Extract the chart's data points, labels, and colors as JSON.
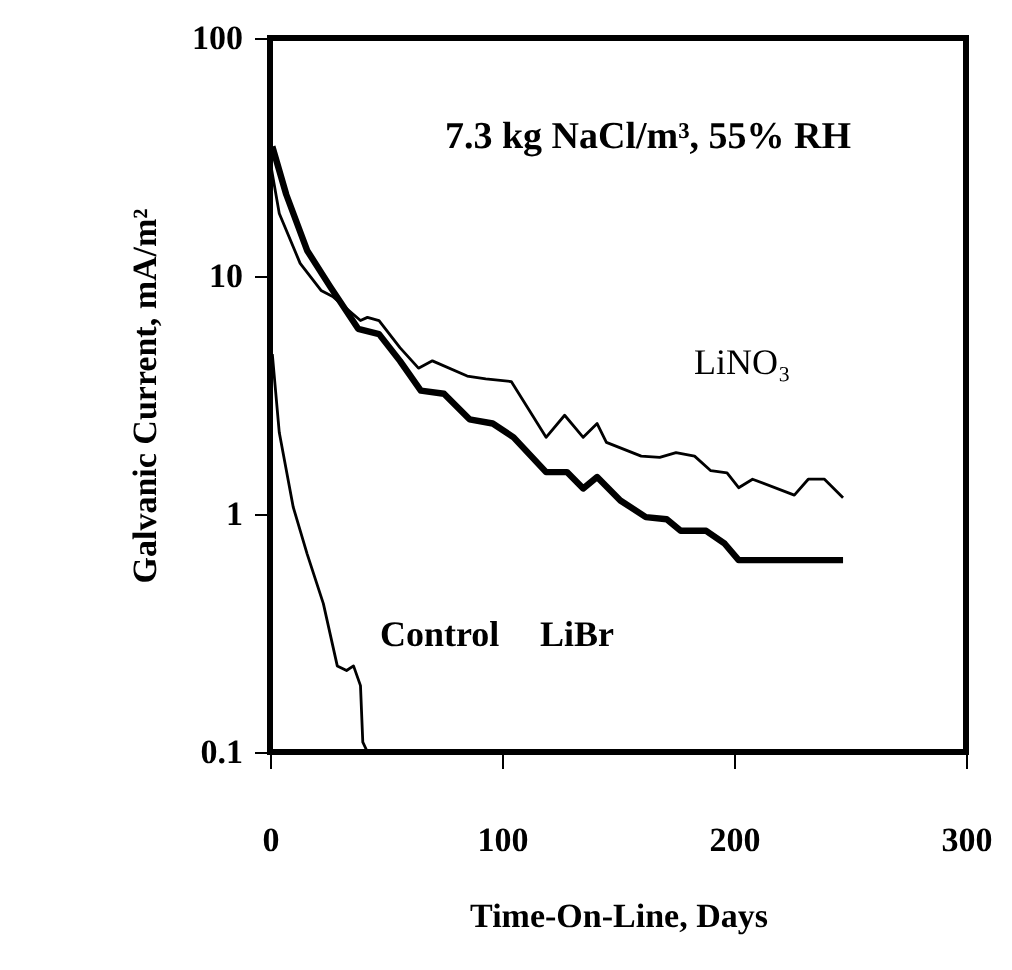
{
  "chart_data": {
    "type": "line",
    "xlabel": "Time-On-Line, Days",
    "ylabel": "Galvanic Current, mA/m²",
    "annotations": [
      "7.3 kg NaCl/m³, 55% RH"
    ],
    "xlim": [
      0,
      300
    ],
    "xticks": [
      0,
      100,
      200,
      300
    ],
    "ylim": [
      0.1,
      100
    ],
    "yticks": [
      0.1,
      1,
      10,
      100
    ],
    "log": true,
    "grid": false,
    "marker": "none",
    "line_style": "solid",
    "series": [
      {
        "name": "LiNO₃",
        "color": "#000000",
        "x": [
          0,
          4,
          13,
          22,
          27,
          39,
          42,
          47,
          56,
          64,
          70,
          85,
          93,
          104,
          111,
          119,
          127,
          135,
          141,
          145,
          160,
          168,
          175,
          183,
          190,
          197,
          202,
          208,
          226,
          232,
          239,
          247
        ],
        "values": [
          30.6,
          18.3,
          11.3,
          8.7,
          8.2,
          6.5,
          6.7,
          6.5,
          5.0,
          4.1,
          4.4,
          3.8,
          3.7,
          3.6,
          2.8,
          2.1,
          2.6,
          2.1,
          2.4,
          2.0,
          1.75,
          1.73,
          1.81,
          1.75,
          1.52,
          1.49,
          1.29,
          1.4,
          1.2,
          1.4,
          1.4,
          1.17
        ]
      },
      {
        "name": "LiBr",
        "color": "#000000",
        "x": [
          1,
          7,
          16,
          26,
          38,
          47,
          56,
          65,
          75,
          86,
          96,
          105,
          119,
          128,
          135,
          141,
          151,
          162,
          171,
          177,
          188,
          196,
          202,
          247
        ],
        "values": [
          35,
          22,
          12.8,
          9.0,
          6.0,
          5.7,
          4.4,
          3.3,
          3.2,
          2.5,
          2.4,
          2.1,
          1.5,
          1.5,
          1.28,
          1.43,
          1.14,
          0.97,
          0.95,
          0.85,
          0.85,
          0.75,
          0.64,
          0.64
        ]
      },
      {
        "name": "Control",
        "color": "#000000",
        "x": [
          1,
          4,
          10,
          16,
          23,
          29,
          33,
          36,
          39,
          40,
          42
        ],
        "values": [
          4.7,
          2.2,
          1.07,
          0.68,
          0.42,
          0.23,
          0.22,
          0.23,
          0.19,
          0.11,
          0.1
        ]
      }
    ]
  }
}
